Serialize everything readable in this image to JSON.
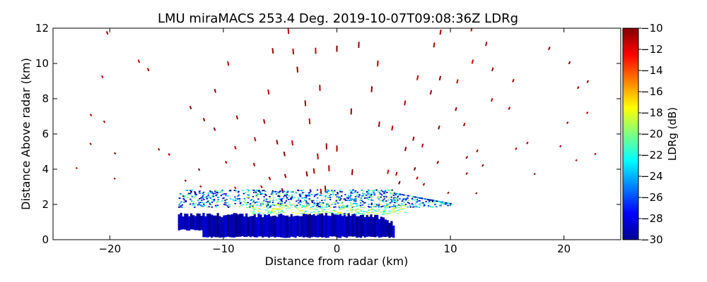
{
  "chart_data": {
    "type": "heatmap",
    "title": "LMU miraMACS 253.4 Deg. 2019-10-07T09:08:36Z  LDRg",
    "xlabel": "Distance from radar (km)",
    "ylabel": "Distance Above radar  (km)",
    "xlim": [
      -25,
      25
    ],
    "ylim": [
      0,
      12
    ],
    "x_ticks": [
      -20,
      -10,
      0,
      10,
      20
    ],
    "y_ticks": [
      0,
      2,
      4,
      6,
      8,
      10,
      12
    ],
    "grid": false,
    "colorbar": {
      "label": "LDRg (dB)",
      "range": [
        -30,
        -10
      ],
      "ticks": [
        -30,
        -28,
        -26,
        -24,
        -22,
        -20,
        -18,
        -16,
        -14,
        -12,
        -10
      ],
      "colormap": "jet"
    },
    "regions": [
      {
        "name": "low-level dense echo",
        "x": [
          -14,
          5
        ],
        "height_km": [
          0.1,
          1.4
        ],
        "ldr_db": -29
      },
      {
        "name": "melting layer band",
        "x": [
          -8,
          6
        ],
        "height_km": [
          1.4,
          2.0
        ],
        "ldr_db": -20
      },
      {
        "name": "ice layer",
        "x": [
          -14,
          10
        ],
        "height_km": [
          1.8,
          2.8
        ],
        "ldr_db": -25
      },
      {
        "name": "sparse high echoes",
        "x": [
          -23,
          23
        ],
        "height_km": [
          2.5,
          12
        ],
        "ldr_db": -10
      }
    ]
  }
}
